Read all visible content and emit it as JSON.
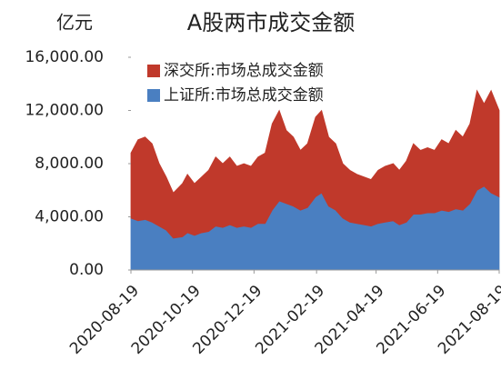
{
  "chart_data": {
    "type": "stacked_area",
    "title": "A股两市成交金额",
    "y_unit": "亿元",
    "x": [
      "2020-08-19",
      "2020-08-26",
      "2020-09-02",
      "2020-09-09",
      "2020-09-16",
      "2020-09-23",
      "2020-09-30",
      "2020-10-09",
      "2020-10-14",
      "2020-10-21",
      "2020-10-28",
      "2020-11-04",
      "2020-11-11",
      "2020-11-18",
      "2020-11-25",
      "2020-12-02",
      "2020-12-09",
      "2020-12-16",
      "2020-12-23",
      "2020-12-30",
      "2021-01-06",
      "2021-01-13",
      "2021-01-20",
      "2021-01-27",
      "2021-02-03",
      "2021-02-10",
      "2021-02-18",
      "2021-02-24",
      "2021-03-03",
      "2021-03-10",
      "2021-03-17",
      "2021-03-24",
      "2021-03-31",
      "2021-04-07",
      "2021-04-14",
      "2021-04-21",
      "2021-04-28",
      "2021-05-06",
      "2021-05-12",
      "2021-05-19",
      "2021-05-26",
      "2021-06-02",
      "2021-06-09",
      "2021-06-16",
      "2021-06-23",
      "2021-06-30",
      "2021-07-07",
      "2021-07-14",
      "2021-07-21",
      "2021-07-28",
      "2021-08-04",
      "2021-08-11",
      "2021-08-19"
    ],
    "series": [
      {
        "name": "深交所:市场总成交金额",
        "color": "#c0392b",
        "values": [
          4900,
          6100,
          6200,
          5900,
          4700,
          4000,
          3400,
          4000,
          4400,
          3900,
          4200,
          4600,
          5200,
          4800,
          5100,
          4600,
          4700,
          4600,
          5000,
          5300,
          6500,
          6800,
          5500,
          5200,
          4500,
          4800,
          6000,
          6200,
          5200,
          5000,
          4100,
          3900,
          3700,
          3600,
          3500,
          4000,
          4200,
          4300,
          4100,
          4600,
          5300,
          4800,
          4900,
          4700,
          5300,
          5100,
          5900,
          5500,
          6000,
          7500,
          6200,
          7700,
          6500
        ]
      },
      {
        "name": "上证所:市场总成交金额",
        "color": "#4a7fc1",
        "values": [
          3900,
          3700,
          3800,
          3600,
          3300,
          3000,
          2400,
          2500,
          2800,
          2600,
          2800,
          2900,
          3300,
          3200,
          3400,
          3200,
          3300,
          3200,
          3500,
          3500,
          4500,
          5200,
          5000,
          4800,
          4500,
          4700,
          5500,
          5800,
          4800,
          4500,
          3900,
          3600,
          3500,
          3400,
          3300,
          3500,
          3600,
          3700,
          3400,
          3600,
          4200,
          4200,
          4300,
          4300,
          4500,
          4400,
          4600,
          4500,
          5000,
          6000,
          6300,
          5800,
          5500
        ]
      }
    ],
    "xlim": [
      "2020-08-19",
      "2021-08-19"
    ],
    "xticks": [
      "2020-08-19",
      "2020-10-19",
      "2020-12-19",
      "2021-02-19",
      "2021-04-19",
      "2021-06-19",
      "2021-08-19"
    ],
    "ylim": [
      0,
      16000
    ],
    "yticks": [
      {
        "value": 0,
        "label": "0.00"
      },
      {
        "value": 4000,
        "label": "4,000.00"
      },
      {
        "value": 8000,
        "label": "8,000.00"
      },
      {
        "value": 12000,
        "label": "12,000.00"
      },
      {
        "value": 16000,
        "label": "16,000.00"
      }
    ],
    "legend": "top-left"
  }
}
